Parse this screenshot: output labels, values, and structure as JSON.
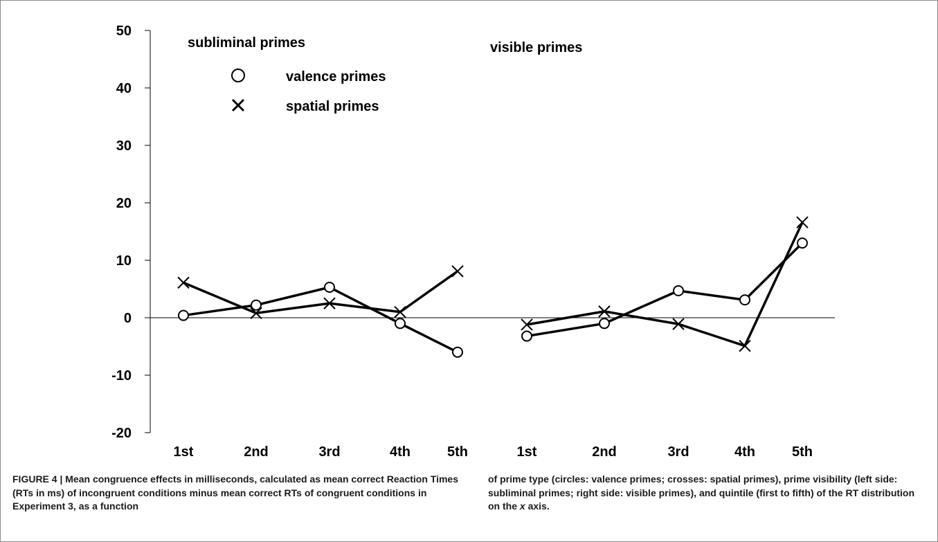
{
  "chart_data": {
    "type": "line",
    "ylim": [
      -20,
      50
    ],
    "yticks": [
      "-20",
      "-10",
      "0",
      "10",
      "20",
      "30",
      "40",
      "50"
    ],
    "zero_line": true,
    "panels": [
      {
        "label": "subliminal primes",
        "categories": [
          "1st",
          "2nd",
          "3rd",
          "4th",
          "5th"
        ],
        "series": [
          {
            "name": "valence primes",
            "marker": "circle",
            "values": [
              0.4,
              2.2,
              5.3,
              -1.0,
              -6.0
            ]
          },
          {
            "name": "spatial primes",
            "marker": "x",
            "values": [
              6.1,
              0.8,
              2.5,
              1.0,
              8.1
            ]
          }
        ]
      },
      {
        "label": "visible primes",
        "categories": [
          "1st",
          "2nd",
          "3rd",
          "4th",
          "5th"
        ],
        "series": [
          {
            "name": "valence primes",
            "marker": "circle",
            "values": [
              -3.2,
              -1.0,
              4.7,
              3.1,
              13.0
            ]
          },
          {
            "name": "spatial primes",
            "marker": "x",
            "values": [
              -1.2,
              1.1,
              -1.1,
              -4.9,
              16.6
            ]
          }
        ]
      }
    ],
    "legend": [
      {
        "name": "valence primes",
        "marker": "circle"
      },
      {
        "name": "spatial primes",
        "marker": "x"
      }
    ],
    "legend_placement": "top-left"
  },
  "caption": {
    "left": "FIGURE 4 | Mean congruence effects in milliseconds, calculated as mean correct Reaction Times (RTs in ms) of incongruent conditions minus mean correct RTs of congruent conditions in Experiment 3, as a function",
    "right_pre": "of prime type (circles: valence primes; crosses: spatial primes), prime visibility (left side: subliminal primes; right side: visible primes), and quintile (first to fifth) of the RT distribution on the ",
    "right_axis": "x",
    "right_post": " axis."
  }
}
